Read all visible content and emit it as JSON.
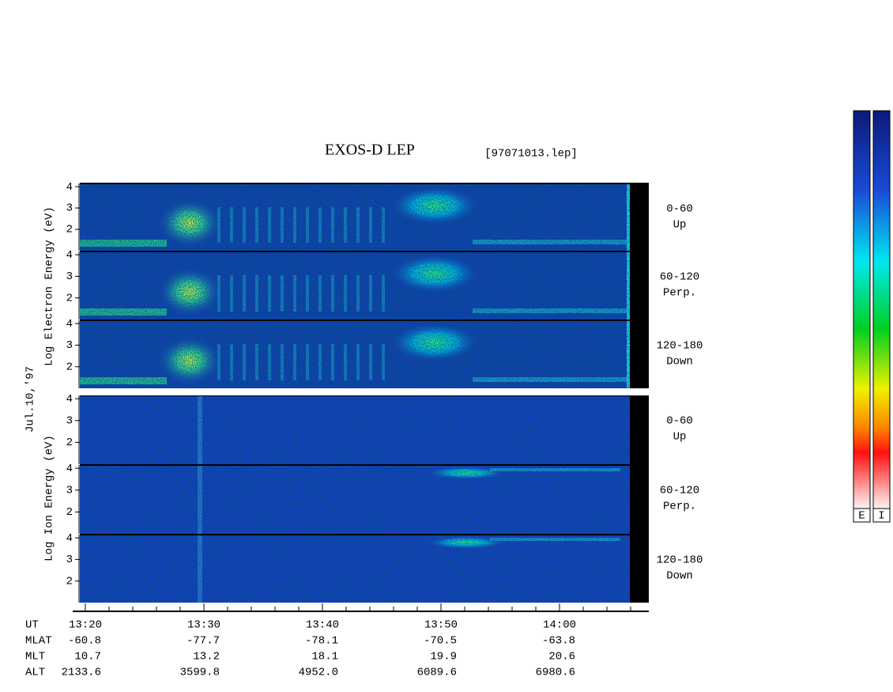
{
  "title": "EXOS-D LEP",
  "file": "[97071013.lep]",
  "date": "Jul.10,'97",
  "groups": [
    {
      "label": "Log  Electron  Energy  (eV)",
      "panels": [
        {
          "range": "0-60",
          "dir": "Up",
          "ylim": [
            1,
            4.15
          ],
          "yticks": [
            4,
            3,
            2
          ]
        },
        {
          "range": "60-120",
          "dir": "Perp.",
          "ylim": [
            1,
            4.15
          ],
          "yticks": [
            4,
            3,
            2
          ]
        },
        {
          "range": "120-180",
          "dir": "Down",
          "ylim": [
            1,
            4.15
          ],
          "yticks": [
            4,
            3,
            2
          ]
        }
      ]
    },
    {
      "label": "Log  Ion  Energy  (eV)",
      "panels": [
        {
          "range": "0-60",
          "dir": "Up",
          "ylim": [
            1,
            4.15
          ],
          "yticks": [
            4,
            3,
            2
          ]
        },
        {
          "range": "60-120",
          "dir": "Perp.",
          "ylim": [
            1,
            4.15
          ],
          "yticks": [
            4,
            3,
            2
          ]
        },
        {
          "range": "120-180",
          "dir": "Down",
          "ylim": [
            1,
            4.15
          ],
          "yticks": [
            4,
            3,
            2
          ]
        }
      ]
    }
  ],
  "orbit": {
    "labels": [
      "UT",
      "MLAT",
      "MLT",
      "ALT"
    ],
    "rows": [
      [
        "13:20",
        "13:30",
        "13:40",
        "13:50",
        "14:00"
      ],
      [
        "-60.8",
        "-77.7",
        "-78.1",
        "-70.5",
        "-63.8"
      ],
      [
        "10.7",
        "13.2",
        "18.1",
        "19.9",
        "20.6"
      ],
      [
        "2133.6",
        "3599.8",
        "4952.0",
        "6089.6",
        "6980.6"
      ]
    ]
  },
  "colorbars": [
    "E",
    "I"
  ]
}
